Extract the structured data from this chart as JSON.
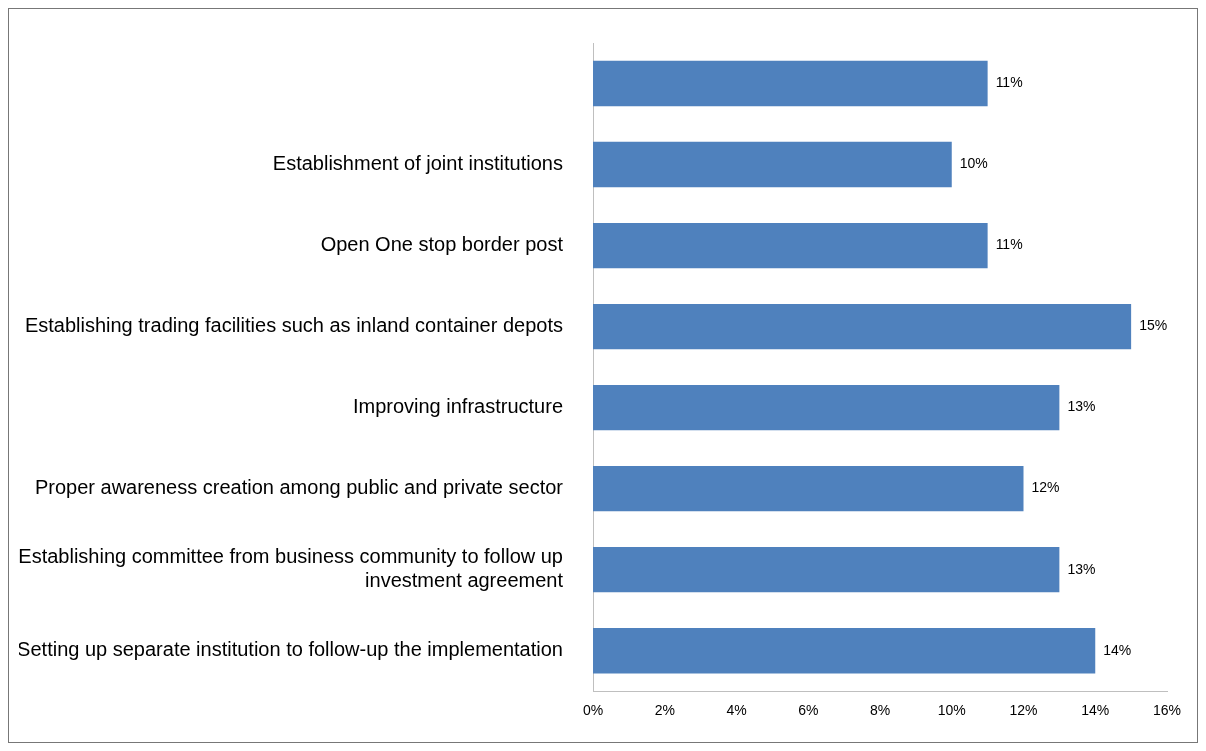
{
  "chart_data": {
    "type": "bar",
    "orientation": "horizontal",
    "categories": [
      null,
      "Establishment of joint institutions",
      "Open One stop border post",
      "Establishing trading facilities such as inland container depots",
      "Improving infrastructure",
      "Proper awareness creation among public and private sector",
      "Establishing committee from business community to follow up investment agreement",
      "Setting up separate institution to follow-up the implementation"
    ],
    "values": [
      11,
      10,
      11,
      15,
      13,
      12,
      13,
      14
    ],
    "value_labels": [
      "11%",
      "10%",
      "11%",
      "15%",
      "13%",
      "12%",
      "13%",
      "14%"
    ],
    "color": "#4f81bd",
    "xlim": [
      0,
      16
    ],
    "xticks": [
      {
        "value": 0,
        "label": "0%"
      },
      {
        "value": 2,
        "label": "2%"
      },
      {
        "value": 4,
        "label": "4%"
      },
      {
        "value": 6,
        "label": "6%"
      },
      {
        "value": 8,
        "label": "8%"
      },
      {
        "value": 10,
        "label": "10%"
      },
      {
        "value": 12,
        "label": "12%"
      },
      {
        "value": 14,
        "label": "14%"
      },
      {
        "value": 16,
        "label": "16%"
      }
    ],
    "grid": false,
    "legend": false
  }
}
